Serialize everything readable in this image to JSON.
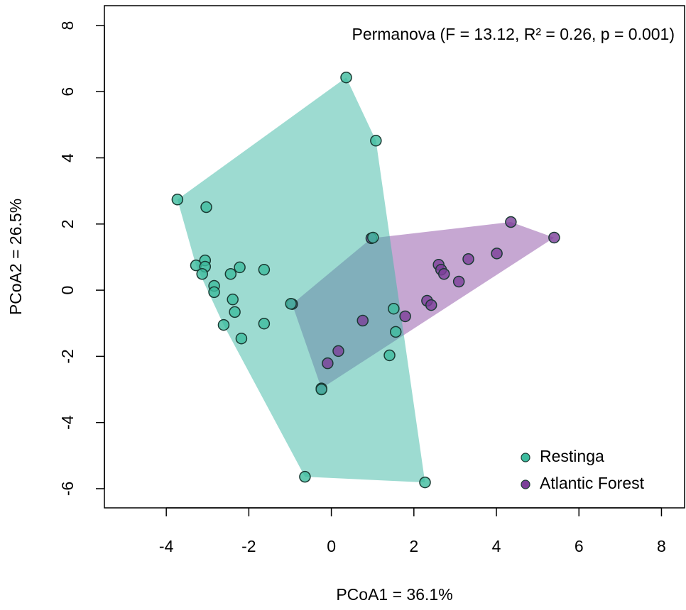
{
  "chart_data": {
    "type": "scatter",
    "annotation": "Permanova (F = 13.12, R² = 0.26, p = 0.001)",
    "x_label": "PCoA1 = 36.1%",
    "y_label": "PCoA2 = 26.5%",
    "xlim": [
      -5.5,
      8.56
    ],
    "ylim": [
      -6.58,
      8.6
    ],
    "xticks": [
      -4,
      -2,
      0,
      2,
      4,
      6,
      8
    ],
    "yticks": [
      -6,
      -4,
      -2,
      0,
      2,
      4,
      6,
      8
    ],
    "grid": false,
    "legend": "bottom-right",
    "hulls": true,
    "series": [
      {
        "name": "Atlantic Forest",
        "color": "#7b3f99",
        "hull_color": "#8e4fa6",
        "x": [
          4.35,
          5.4,
          4.01,
          3.32,
          2.6,
          2.66,
          2.73,
          3.09,
          2.32,
          2.42,
          1.79,
          0.76,
          0.17,
          -0.09,
          -0.95,
          -0.24,
          0.97
        ],
        "values": [
          2.06,
          1.59,
          1.11,
          0.94,
          0.77,
          0.62,
          0.49,
          0.26,
          -0.32,
          -0.45,
          -0.79,
          -0.92,
          -1.84,
          -2.21,
          -0.42,
          -2.97,
          1.57
        ]
      },
      {
        "name": "Restinga",
        "color": "#3dbb9e",
        "hull_color": "#3cb8a4",
        "x": [
          0.36,
          1.08,
          -3.73,
          -3.03,
          1.01,
          -3.06,
          -3.28,
          -3.06,
          -3.13,
          -2.84,
          -2.84,
          -2.44,
          -2.22,
          -1.63,
          -2.39,
          -2.34,
          -2.61,
          -2.18,
          -1.63,
          -0.98,
          1.51,
          1.56,
          1.41,
          -0.24,
          -0.64,
          2.27
        ],
        "values": [
          6.43,
          4.52,
          2.74,
          2.51,
          1.59,
          0.9,
          0.75,
          0.71,
          0.49,
          0.13,
          -0.06,
          0.49,
          0.69,
          0.62,
          -0.28,
          -0.66,
          -1.05,
          -1.46,
          -1.01,
          -0.41,
          -0.56,
          -1.26,
          -1.97,
          -3.0,
          -5.64,
          -5.81
        ]
      }
    ]
  }
}
